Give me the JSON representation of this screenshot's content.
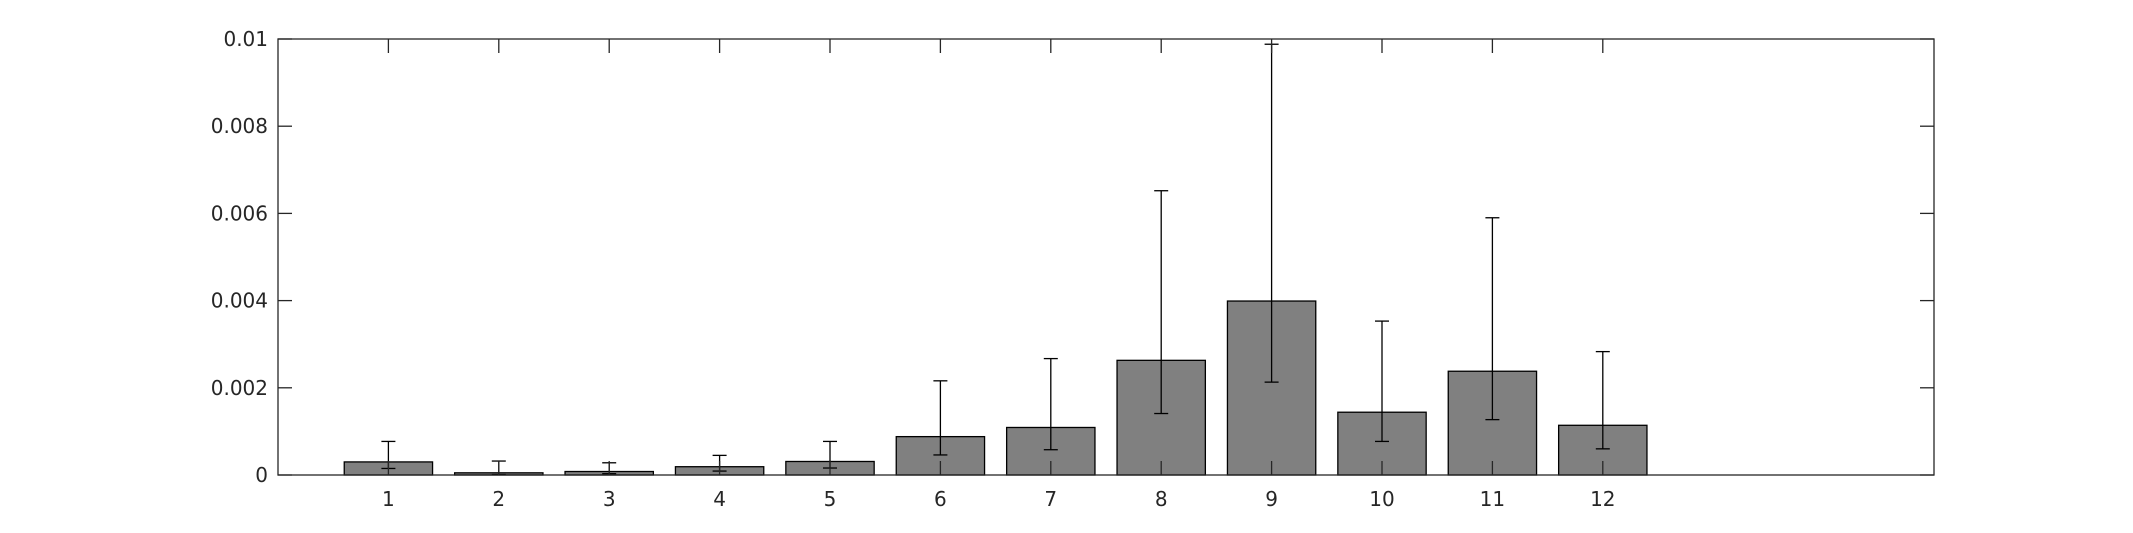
{
  "chart_data": {
    "type": "bar",
    "title": "",
    "xlabel": "",
    "ylabel": "",
    "xlim": [
      0.0,
      15.0
    ],
    "ylim": [
      0,
      0.01
    ],
    "grid": false,
    "legend": "none",
    "bar_color": "#808080",
    "edge_color": "#000000",
    "y_ticks": [
      0,
      0.002,
      0.004,
      0.006,
      0.008,
      0.01
    ],
    "y_tick_labels": [
      "0",
      "0.002",
      "0.004",
      "0.006",
      "0.008",
      "0.01"
    ],
    "categories": [
      1,
      2,
      3,
      4,
      5,
      6,
      7,
      8,
      9,
      10,
      11,
      12
    ],
    "category_labels": [
      "1",
      "2",
      "3",
      "4",
      "5",
      "6",
      "7",
      "8",
      "9",
      "10",
      "11",
      "12"
    ],
    "values": [
      0.0003,
      5e-05,
      8e-05,
      0.00019,
      0.00031,
      0.00088,
      0.00109,
      0.00263,
      0.00399,
      0.00144,
      0.00238,
      0.00114
    ],
    "error_low": [
      0.00015,
      1e-05,
      3e-05,
      9e-05,
      0.00016,
      0.00046,
      0.00058,
      0.00141,
      0.00213,
      0.00077,
      0.00127,
      0.0006
    ],
    "error_high": [
      0.00077,
      0.00032,
      0.00028,
      0.00045,
      0.00077,
      0.00216,
      0.00267,
      0.00652,
      0.00988,
      0.00353,
      0.0059,
      0.00283
    ]
  }
}
